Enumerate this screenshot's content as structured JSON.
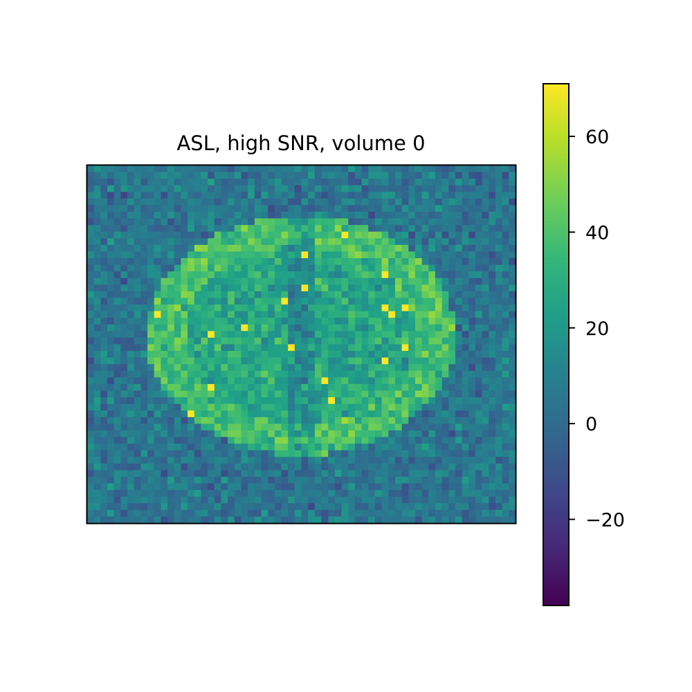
{
  "chart_data": {
    "type": "heatmap",
    "title": "ASL, high SNR, volume 0",
    "xlabel": "",
    "ylabel": "",
    "grid": false,
    "axis_ticks_visible": false,
    "image_grid": {
      "cols": 64,
      "rows": 54
    },
    "colormap": {
      "name": "viridis",
      "stops": [
        "#440154",
        "#482878",
        "#3e4989",
        "#31688e",
        "#26828e",
        "#1f9e89",
        "#35b779",
        "#6ece58",
        "#b5de2b",
        "#fde725"
      ]
    },
    "value_range": [
      -38,
      71
    ],
    "colorbar": {
      "ticks": [
        -20,
        0,
        20,
        40,
        60
      ],
      "tick_labels": [
        "−20",
        "0",
        "20",
        "40",
        "60"
      ]
    },
    "region_values": {
      "background_mean": 5,
      "background_spread": 22,
      "brain_mean": 38,
      "brain_spread": 22,
      "brain_peak": 71
    }
  }
}
